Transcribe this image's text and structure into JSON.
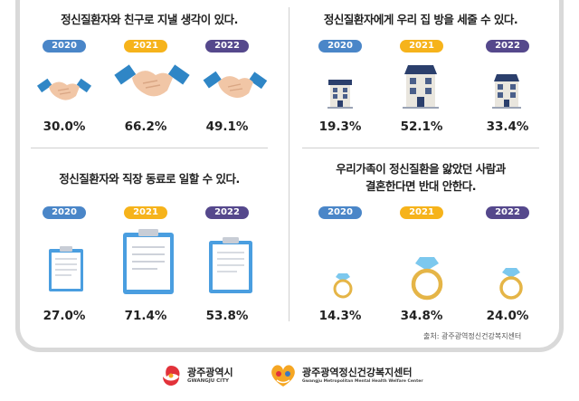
{
  "panels": [
    {
      "title": "정신질환자와 친구로 지낼 생각이 있다.",
      "years": [
        "2020",
        "2021",
        "2022"
      ],
      "values": [
        "30.0%",
        "66.2%",
        "49.1%"
      ],
      "icon": "handshake-icon"
    },
    {
      "title": "정신질환자에게 우리 집 방을 세줄 수 있다.",
      "years": [
        "2020",
        "2021",
        "2022"
      ],
      "values": [
        "19.3%",
        "52.1%",
        "33.4%"
      ],
      "icon": "house-icon"
    },
    {
      "title": "정신질환자와 직장 동료로 일할 수 있다.",
      "years": [
        "2020",
        "2021",
        "2022"
      ],
      "values": [
        "27.0%",
        "71.4%",
        "53.8%"
      ],
      "icon": "clipboard-icon"
    },
    {
      "title_line1": "우리가족이 정신질환을 앓았던 사람과",
      "title_line2": "결혼한다면 반대 안한다.",
      "years": [
        "2020",
        "2021",
        "2022"
      ],
      "values": [
        "14.3%",
        "34.8%",
        "24.0%"
      ],
      "icon": "ring-icon"
    }
  ],
  "source": "출처: 광주광역정신건강복지센터",
  "logos": {
    "city_main": "광주광역시",
    "city_sub": "GWANGJU CITY",
    "center_main": "광주광역정신건강복지센터",
    "center_sub": "Gwangju Metropolitan Mental Health Welfare Center"
  },
  "colors": {
    "y2020": "#4a86c8",
    "y2021": "#f6b31b",
    "y2022": "#55488c",
    "sleeve": "#2f86c6",
    "hand": "#f1c6a6",
    "house_roof": "#2b3f6c",
    "house_wall": "#e9e6de",
    "clipboard": "#4a9ee0",
    "ring_band": "#e5b547",
    "gem": "#7cc8ee"
  }
}
